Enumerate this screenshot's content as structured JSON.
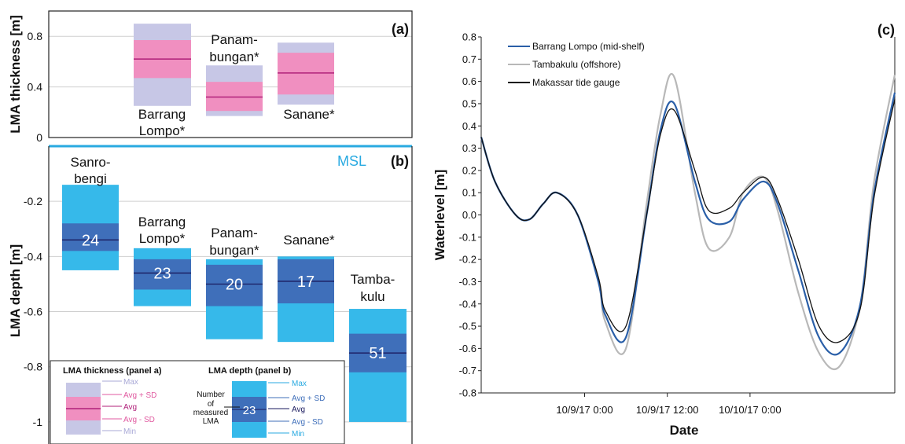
{
  "chart_data": [
    {
      "panel": "(a)",
      "type": "box",
      "ylabel": "LMA thickness [m]",
      "ylim": [
        0,
        1.0
      ],
      "yticks": [
        0,
        0.4,
        0.8
      ],
      "grid": true,
      "boxes": [
        {
          "label_lines": [
            "Barrang",
            "Lompo*"
          ],
          "label_pos": "below",
          "min": 0.25,
          "avg_minus_sd": 0.47,
          "avg": 0.62,
          "avg_plus_sd": 0.77,
          "max": 0.9
        },
        {
          "label_lines": [
            "Panam-",
            "bungan*"
          ],
          "label_pos": "above",
          "min": 0.17,
          "avg_minus_sd": 0.21,
          "avg": 0.32,
          "avg_plus_sd": 0.44,
          "max": 0.57
        },
        {
          "label_lines": [
            "Sanane*"
          ],
          "label_pos": "below",
          "min": 0.26,
          "avg_minus_sd": 0.34,
          "avg": 0.51,
          "avg_plus_sd": 0.67,
          "max": 0.75
        }
      ],
      "colors": {
        "range": "#c7c7e6",
        "sd": "#f08fc0",
        "avg": "#b0207a"
      }
    },
    {
      "panel": "(b)",
      "type": "box",
      "ylabel": "LMA depth [m]",
      "ylim": [
        -1.08,
        0.0
      ],
      "yticks": [
        -1,
        -0.8,
        -0.6,
        -0.4,
        -0.2
      ],
      "grid": true,
      "msl_label": "MSL",
      "boxes": [
        {
          "label_lines": [
            "Sanro-",
            "bengi"
          ],
          "count": 24,
          "min": -0.45,
          "avg_minus_sd": -0.38,
          "avg": -0.34,
          "avg_plus_sd": -0.28,
          "max": -0.14
        },
        {
          "label_lines": [
            "Barrang",
            "Lompo*"
          ],
          "count": 23,
          "min": -0.58,
          "avg_minus_sd": -0.52,
          "avg": -0.46,
          "avg_plus_sd": -0.41,
          "max": -0.37
        },
        {
          "label_lines": [
            "Panam-",
            "bungan*"
          ],
          "count": 20,
          "min": -0.7,
          "avg_minus_sd": -0.58,
          "avg": -0.5,
          "avg_plus_sd": -0.43,
          "max": -0.41
        },
        {
          "label_lines": [
            "Sanane*"
          ],
          "count": 17,
          "min": -0.71,
          "avg_minus_sd": -0.57,
          "avg": -0.49,
          "avg_plus_sd": -0.41,
          "max": -0.4
        },
        {
          "label_lines": [
            "Tamba-",
            "kulu"
          ],
          "count": 51,
          "min": -1.0,
          "avg_minus_sd": -0.82,
          "avg": -0.75,
          "avg_plus_sd": -0.68,
          "max": -0.59
        }
      ],
      "colors": {
        "range": "#36b9ea",
        "sd": "#3f6fba",
        "avg": "#1a1a5e"
      }
    },
    {
      "panel": "(c)",
      "type": "line",
      "xlabel": "Date",
      "ylabel": "Waterlevel [m]",
      "ylim": [
        -0.8,
        0.8
      ],
      "yticks": [
        -0.8,
        -0.7,
        -0.6,
        -0.5,
        -0.4,
        -0.3,
        -0.2,
        -0.1,
        0.0,
        0.1,
        0.2,
        0.3,
        0.4,
        0.5,
        0.6,
        0.7,
        0.8
      ],
      "xlim": [
        "10/8/17 9:00",
        "10/10/17 21:00"
      ],
      "xticks": [
        "10/9/17 0:00",
        "10/9/17 12:00",
        "10/10/17 0:00"
      ],
      "x_hours_per_tick": 12,
      "series": [
        {
          "name": "Barrang Lompo (mid-shelf)",
          "color": "#2a5fa8",
          "x": [
            "10/8/17 9:00",
            "10/8/17 11:00",
            "10/8/17 14:00",
            "10/8/17 16:00",
            "10/8/17 18:00",
            "10/8/17 20:00",
            "10/8/17 23:00",
            "10/9/17 2:00",
            "10/9/17 3:00",
            "10/9/17 6:00",
            "10/9/17 9:00",
            "10/9/17 11:00",
            "10/9/17 13:00",
            "10/9/17 16:00",
            "10/9/17 18:00",
            "10/9/17 21:00",
            "10/9/17 23:00",
            "10/10/17 2:00",
            "10/10/17 4:00",
            "10/10/17 7:00",
            "10/10/17 10:00",
            "10/10/17 13:00",
            "10/10/17 16:00",
            "10/10/17 18:00",
            "10/10/17 21:00"
          ],
          "values": [
            0.35,
            0.15,
            0.0,
            -0.02,
            0.05,
            0.1,
            0.0,
            -0.3,
            -0.45,
            -0.55,
            0.0,
            0.38,
            0.5,
            0.15,
            -0.02,
            -0.03,
            0.07,
            0.15,
            0.05,
            -0.25,
            -0.55,
            -0.62,
            -0.4,
            0.1,
            0.55
          ]
        },
        {
          "name": "Tambakulu (offshore)",
          "color": "#b8b8b8",
          "x": [
            "10/8/17 9:00",
            "10/8/17 11:00",
            "10/8/17 14:00",
            "10/8/17 16:00",
            "10/8/17 18:00",
            "10/8/17 20:00",
            "10/8/17 23:00",
            "10/9/17 2:00",
            "10/9/17 3:00",
            "10/9/17 6:00",
            "10/9/17 9:00",
            "10/9/17 11:00",
            "10/9/17 13:00",
            "10/9/17 16:00",
            "10/9/17 18:00",
            "10/9/17 21:00",
            "10/9/17 23:00",
            "10/10/17 2:00",
            "10/10/17 4:00",
            "10/10/17 7:00",
            "10/10/17 10:00",
            "10/10/17 13:00",
            "10/10/17 16:00",
            "10/10/17 18:00",
            "10/10/17 21:00"
          ],
          "values": [
            0.35,
            0.15,
            0.0,
            -0.02,
            0.05,
            0.1,
            0.0,
            -0.3,
            -0.48,
            -0.6,
            0.05,
            0.45,
            0.62,
            0.1,
            -0.15,
            -0.1,
            0.1,
            0.17,
            0.02,
            -0.35,
            -0.62,
            -0.68,
            -0.4,
            0.15,
            0.63
          ]
        },
        {
          "name": "Makassar tide gauge",
          "color": "#111111",
          "x": [
            "10/8/17 9:00",
            "10/8/17 11:00",
            "10/8/17 14:00",
            "10/8/17 16:00",
            "10/8/17 18:00",
            "10/8/17 20:00",
            "10/8/17 23:00",
            "10/9/17 2:00",
            "10/9/17 3:00",
            "10/9/17 6:00",
            "10/9/17 9:00",
            "10/9/17 11:00",
            "10/9/17 13:00",
            "10/9/17 16:00",
            "10/9/17 18:00",
            "10/9/17 21:00",
            "10/9/17 23:00",
            "10/10/17 2:00",
            "10/10/17 4:00",
            "10/10/17 7:00",
            "10/10/17 10:00",
            "10/10/17 13:00",
            "10/10/17 16:00",
            "10/10/17 18:00",
            "10/10/17 21:00"
          ],
          "values": [
            0.35,
            0.15,
            0.0,
            -0.02,
            0.05,
            0.1,
            0.0,
            -0.28,
            -0.43,
            -0.5,
            0.0,
            0.36,
            0.47,
            0.2,
            0.02,
            0.03,
            0.1,
            0.17,
            0.07,
            -0.2,
            -0.5,
            -0.57,
            -0.42,
            0.08,
            0.52
          ]
        }
      ],
      "legend_position": "top-left"
    }
  ],
  "legend_a": {
    "title": "LMA thickness (panel a)",
    "labels": [
      "Max",
      "Avg + SD",
      "Avg",
      "Avg - SD",
      "Min"
    ]
  },
  "legend_b": {
    "title": "LMA depth (panel b)",
    "labels": [
      "Max",
      "Avg + SD",
      "Avg",
      "Avg - SD",
      "Min"
    ],
    "count_example": "23",
    "count_note_lines": [
      "Number",
      "of",
      "measured",
      "LMA"
    ]
  }
}
